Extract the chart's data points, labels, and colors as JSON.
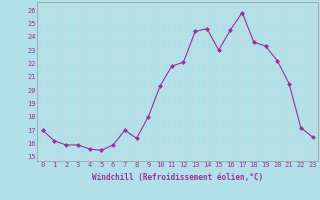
{
  "x": [
    0,
    1,
    2,
    3,
    4,
    5,
    6,
    7,
    8,
    9,
    10,
    11,
    12,
    13,
    14,
    15,
    16,
    17,
    18,
    19,
    20,
    21,
    22,
    23
  ],
  "y": [
    17.0,
    16.2,
    15.9,
    15.9,
    15.6,
    15.5,
    15.9,
    17.0,
    16.4,
    18.0,
    20.3,
    21.8,
    22.1,
    24.4,
    24.6,
    23.0,
    24.5,
    25.8,
    23.6,
    23.3,
    22.2,
    20.5,
    17.2,
    16.5
  ],
  "line_color": "#993399",
  "marker": "D",
  "marker_size": 2,
  "bg_color": "#b2e0e8",
  "grid_color": "#c8dde0",
  "xlabel": "Windchill (Refroidissement éolien,°C)",
  "ylabel_ticks": [
    15,
    16,
    17,
    18,
    19,
    20,
    21,
    22,
    23,
    24,
    25,
    26
  ],
  "ylim": [
    14.7,
    26.6
  ],
  "xlim": [
    -0.5,
    23.5
  ],
  "tick_color": "#993399",
  "label_color": "#993399",
  "font_family": "monospace",
  "tick_fontsize": 5.0,
  "xlabel_fontsize": 5.5
}
